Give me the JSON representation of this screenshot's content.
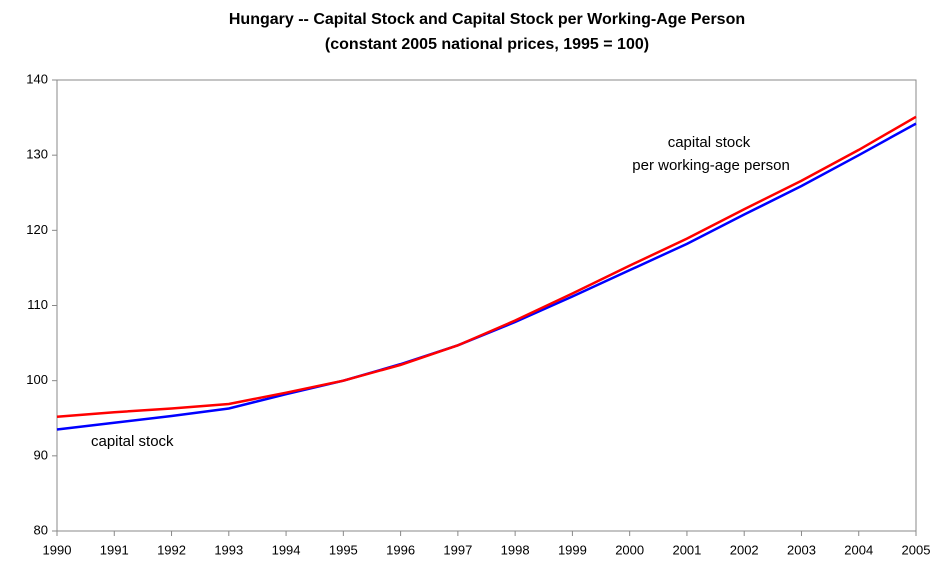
{
  "chart_data": {
    "type": "line",
    "title": "Hungary -- Capital Stock and Capital Stock per Working-Age Person",
    "subtitle": "(constant 2005 national prices, 1995 = 100)",
    "x": [
      1990,
      1991,
      1992,
      1993,
      1994,
      1995,
      1996,
      1997,
      1998,
      1999,
      2000,
      2001,
      2002,
      2003,
      2004,
      2005
    ],
    "series": [
      {
        "name": "capital stock",
        "color": "#0000ff",
        "values": [
          93.5,
          94.4,
          95.3,
          96.3,
          98.2,
          100,
          102.2,
          104.7,
          107.8,
          111.2,
          114.7,
          118.2,
          122.1,
          125.9,
          130.0,
          134.2
        ]
      },
      {
        "name": "capital stock per working-age person",
        "color": "#ff0000",
        "values": [
          95.2,
          95.8,
          96.3,
          96.9,
          98.4,
          100,
          102.1,
          104.7,
          108.0,
          111.6,
          115.3,
          118.9,
          122.8,
          126.6,
          130.7,
          135.1
        ]
      }
    ],
    "xlim": [
      1990,
      2005
    ],
    "xticks": [
      1990,
      1991,
      1992,
      1993,
      1994,
      1995,
      1996,
      1997,
      1998,
      1999,
      2000,
      2001,
      2002,
      2003,
      2004,
      2005
    ],
    "ylim": [
      80,
      140
    ],
    "yticks": [
      80,
      90,
      100,
      110,
      120,
      130,
      140
    ],
    "grid": false
  }
}
